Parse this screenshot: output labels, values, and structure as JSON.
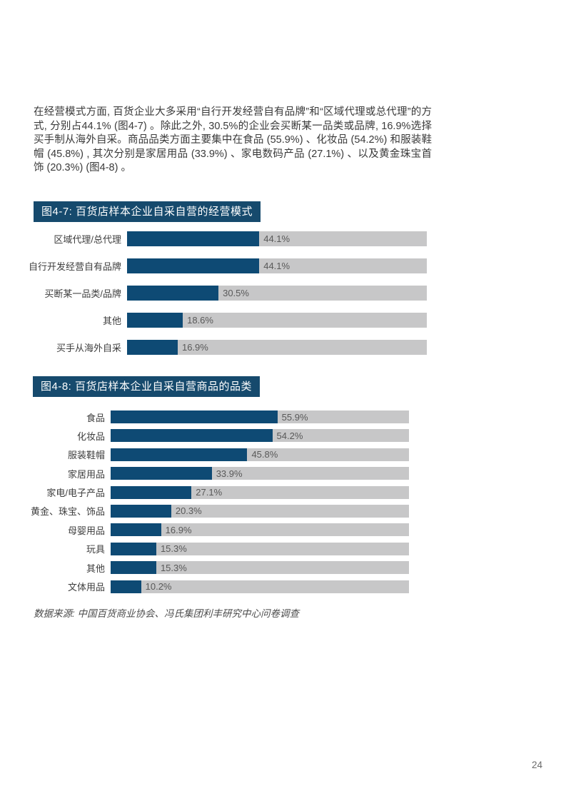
{
  "page": {
    "paragraph": "在经营模式方面, 百货企业大多采用“自行开发经营自有品牌”和“区域代理或总代理”的方式, 分别占44.1% (图4-7) 。除此之外, 30.5%的企业会买断某一品类或品牌, 16.9%选择买手制从海外自采。商品品类方面主要集中在食品 (55.9%) 、化妆品 (54.2%) 和服装鞋帽 (45.8%) , 其次分别是家居用品 (33.9%) 、家电数码产品 (27.1%) 、以及黄金珠宝首饰 (20.3%) (图4-8) 。",
    "source_note": "数据来源: 中国百货商业协会、冯氏集团利丰研究中心问卷调查",
    "page_number": "24"
  },
  "colors": {
    "bar_fill": "#0e4a74",
    "bar_track": "#c7c7c8",
    "title_bg": "#164a6d",
    "title_text": "#ffffff",
    "value_text": "#595959",
    "label_text": "#3d3d3d"
  },
  "chart_data": [
    {
      "type": "bar",
      "orientation": "horizontal",
      "title": "图4-7: 百货店样本企业自采自营的经营模式",
      "categories": [
        "区域代理/总代理",
        "自行开发经营自有品牌",
        "买断某一品类/品牌",
        "其他",
        "买手从海外自采"
      ],
      "values": [
        44.1,
        44.1,
        30.5,
        18.6,
        16.9
      ],
      "value_labels": [
        "44.1%",
        "44.1%",
        "30.5%",
        "18.6%",
        "16.9%"
      ],
      "xlim": [
        0,
        100
      ],
      "grid": false,
      "legend": "none"
    },
    {
      "type": "bar",
      "orientation": "horizontal",
      "title": "图4-8: 百货店样本企业自采自营商品的品类",
      "categories": [
        "食品",
        "化妆品",
        "服装鞋帽",
        "家居用品",
        "家电/电子产品",
        "黄金、珠宝、饰品",
        "母婴用品",
        "玩具",
        "其他",
        "文体用品"
      ],
      "values": [
        55.9,
        54.2,
        45.8,
        33.9,
        27.1,
        20.3,
        16.9,
        15.3,
        15.3,
        10.2
      ],
      "value_labels": [
        "55.9%",
        "54.2%",
        "45.8%",
        "33.9%",
        "27.1%",
        "20.3%",
        "16.9%",
        "15.3%",
        "15.3%",
        "10.2%"
      ],
      "xlim": [
        0,
        100
      ],
      "grid": false,
      "legend": "none"
    }
  ]
}
